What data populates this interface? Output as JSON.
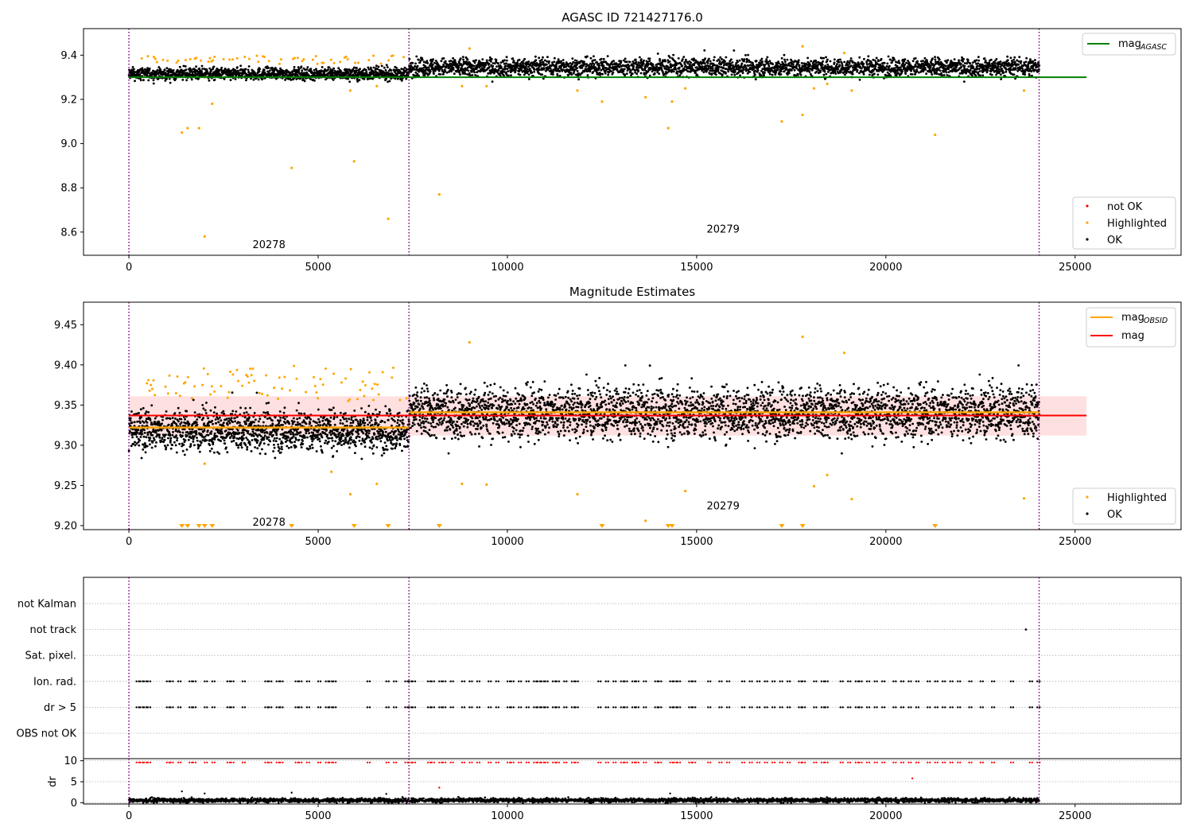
{
  "figure": {
    "title_top": "AGASC ID 721427176.0",
    "title_mid": "Magnitude Estimates"
  },
  "chart_data": [
    {
      "id": "agasc-panel",
      "type": "scatter",
      "title": "AGASC ID 721427176.0",
      "xlim": [
        -1200,
        27800
      ],
      "ylim": [
        8.495,
        9.52
      ],
      "xticks": [
        0,
        5000,
        10000,
        15000,
        20000,
        25000
      ],
      "xtick_labels": [
        "0",
        "5000",
        "10000",
        "15000",
        "20000",
        "25000"
      ],
      "yticks": [
        8.6,
        8.8,
        9.0,
        9.2,
        9.4
      ],
      "ytick_labels": [
        "8.6",
        "8.8",
        "9.0",
        "9.2",
        "9.4"
      ],
      "obsid_boundaries": [
        0,
        7400,
        24050
      ],
      "obsid_labels": [
        {
          "text": "20278",
          "x": 3700,
          "y": 8.545
        },
        {
          "text": "20279",
          "x": 15700,
          "y": 8.615
        }
      ],
      "reference_line": {
        "name": "mag_AGASC",
        "y": 9.3,
        "x_range": [
          0,
          25300
        ],
        "color": "#008000"
      },
      "ok_bands": [
        {
          "x_range": [
            0,
            7400
          ],
          "center": 9.315,
          "spread": 0.03
        },
        {
          "x_range": [
            7400,
            24050
          ],
          "center": 9.345,
          "spread": 0.045
        }
      ],
      "highlighted_points": [
        [
          1400,
          9.05
        ],
        [
          1550,
          9.07
        ],
        [
          1850,
          9.07
        ],
        [
          2000,
          9.3
        ],
        [
          2000,
          8.58
        ],
        [
          2200,
          9.18
        ],
        [
          4300,
          8.89
        ],
        [
          5850,
          9.24
        ],
        [
          5950,
          8.92
        ],
        [
          6550,
          9.26
        ],
        [
          6850,
          8.66
        ],
        [
          8200,
          8.77
        ],
        [
          8800,
          9.26
        ],
        [
          9000,
          9.43
        ],
        [
          9450,
          9.26
        ],
        [
          11850,
          9.24
        ],
        [
          12500,
          9.19
        ],
        [
          13650,
          9.21
        ],
        [
          14250,
          9.07
        ],
        [
          14350,
          9.19
        ],
        [
          14700,
          9.25
        ],
        [
          17250,
          9.1
        ],
        [
          17800,
          9.13
        ],
        [
          17800,
          9.44
        ],
        [
          18100,
          9.25
        ],
        [
          18450,
          9.27
        ],
        [
          18900,
          9.41
        ],
        [
          19100,
          9.24
        ],
        [
          21300,
          9.04
        ],
        [
          23650,
          9.24
        ]
      ],
      "legend": [
        {
          "label": "mag",
          "subscript": "AGASC",
          "color": "#008000"
        },
        {
          "label": "not OK",
          "color": "#ff0000"
        },
        {
          "label": "Highlighted",
          "color": "#ffa500"
        },
        {
          "label": "OK",
          "color": "#000000"
        }
      ]
    },
    {
      "id": "estimates-panel",
      "type": "scatter",
      "title": "Magnitude Estimates",
      "xlim": [
        -1200,
        27800
      ],
      "ylim": [
        9.195,
        9.478
      ],
      "xticks": [
        0,
        5000,
        10000,
        15000,
        20000,
        25000
      ],
      "xtick_labels": [
        "0",
        "5000",
        "10000",
        "15000",
        "20000",
        "25000"
      ],
      "yticks": [
        9.2,
        9.25,
        9.3,
        9.35,
        9.4,
        9.45
      ],
      "ytick_labels": [
        "9.20",
        "9.25",
        "9.30",
        "9.35",
        "9.40",
        "9.45"
      ],
      "obsid_boundaries": [
        0,
        7400,
        24050
      ],
      "obsid_labels": [
        {
          "text": "20278",
          "x": 3700,
          "y": 9.205
        },
        {
          "text": "20279",
          "x": 15700,
          "y": 9.225
        }
      ],
      "mag_line": {
        "name": "mag",
        "y": 9.337,
        "x_range": [
          0,
          25300
        ],
        "color": "#ff0000"
      },
      "mag_band": {
        "y_range": [
          9.312,
          9.361
        ],
        "x_range": [
          0,
          25300
        ],
        "color": "#ffdddd"
      },
      "obsid_mags": [
        {
          "name": "mag_OBSID",
          "y": 9.322,
          "x_range": [
            0,
            7400
          ],
          "color": "#ffa500"
        },
        {
          "name": "mag_OBSID",
          "y": 9.341,
          "x_range": [
            7400,
            24050
          ],
          "color": "#ffa500"
        }
      ],
      "ok_bands": [
        {
          "x_range": [
            0,
            7400
          ],
          "center": 9.318,
          "spread": 0.028
        },
        {
          "x_range": [
            7400,
            24050
          ],
          "center": 9.34,
          "spread": 0.035
        }
      ],
      "highlighted_points": [
        [
          2000,
          9.277
        ],
        [
          5350,
          9.267
        ],
        [
          5850,
          9.239
        ],
        [
          6550,
          9.252
        ],
        [
          8800,
          9.252
        ],
        [
          9000,
          9.428
        ],
        [
          9450,
          9.251
        ],
        [
          11850,
          9.239
        ],
        [
          13650,
          9.206
        ],
        [
          14700,
          9.243
        ],
        [
          17800,
          9.435
        ],
        [
          18100,
          9.249
        ],
        [
          18450,
          9.263
        ],
        [
          18900,
          9.415
        ],
        [
          19100,
          9.233
        ],
        [
          23650,
          9.234
        ]
      ],
      "clipped_markers_x": [
        1400,
        1550,
        1850,
        2000,
        2200,
        4300,
        5950,
        6850,
        8200,
        12500,
        14250,
        14350,
        17250,
        17800,
        21300
      ],
      "legend_top": [
        {
          "label": "mag",
          "subscript": "OBSID",
          "color": "#ffa500"
        },
        {
          "label": "mag",
          "color": "#ff0000"
        }
      ],
      "legend_bottom": [
        {
          "label": "Highlighted",
          "color": "#ffa500"
        },
        {
          "label": "OK",
          "color": "#000000"
        }
      ]
    },
    {
      "id": "flags-panel",
      "type": "scatter",
      "xlim": [
        -1200,
        27800
      ],
      "categories": [
        "not Kalman",
        "not track",
        "Sat. pixel.",
        "Ion. rad.",
        "dr > 5",
        "OBS not OK"
      ],
      "obsid_boundaries": [
        0,
        7400,
        24050
      ],
      "flag_x": [
        200,
        300,
        400,
        500,
        1000,
        1100,
        1300,
        1600,
        1700,
        2000,
        2200,
        2600,
        2700,
        3000,
        3600,
        3700,
        3900,
        4000,
        4400,
        4500,
        4700,
        5000,
        5200,
        5300,
        5400,
        6300,
        6800,
        7000,
        7300,
        7400,
        7500,
        7900,
        8000,
        8200,
        8300,
        8500,
        8800,
        9000,
        9200,
        9500,
        9700,
        10000,
        10100,
        10300,
        10500,
        10700,
        10800,
        10900,
        11000,
        11200,
        11300,
        11500,
        11700,
        11800,
        12400,
        12600,
        12800,
        13000,
        13100,
        13300,
        13400,
        13600,
        13900,
        14000,
        14300,
        14400,
        14500,
        14800,
        14900,
        15300,
        15600,
        15800,
        16200,
        16400,
        16600,
        16800,
        17000,
        17200,
        17400,
        17700,
        17800,
        18100,
        18300,
        18400,
        18800,
        19000,
        19200,
        19300,
        19500,
        19700,
        19900,
        20200,
        20400,
        20600,
        20800,
        21100,
        21300,
        21500,
        21700,
        21900,
        22200,
        22500,
        22800,
        23300,
        23800,
        24000
      ],
      "not_track_x": [
        23700
      ]
    },
    {
      "id": "dr-panel",
      "type": "scatter",
      "ylabel": "dr",
      "xlim": [
        -1200,
        27800
      ],
      "ylim": [
        -0.3,
        10.5
      ],
      "xticks": [
        0,
        5000,
        10000,
        15000,
        20000,
        25000
      ],
      "xtick_labels": [
        "0",
        "5000",
        "10000",
        "15000",
        "20000",
        "25000"
      ],
      "yticks": [
        0,
        5,
        10
      ],
      "ytick_labels": [
        "0",
        "5",
        "10"
      ],
      "obsid_boundaries": [
        0,
        7400,
        24050
      ],
      "dr_baseline": {
        "x_range": [
          0,
          24050
        ],
        "center": 0.6,
        "spread": 0.5
      },
      "dr_high_value": 9.6,
      "dr_outliers": [
        [
          1400,
          2.7
        ],
        [
          2000,
          2.2
        ],
        [
          4300,
          2.4
        ],
        [
          6800,
          2.1
        ],
        [
          8200,
          3.6
        ],
        [
          20700,
          5.8
        ],
        [
          14300,
          2.2
        ]
      ]
    }
  ]
}
